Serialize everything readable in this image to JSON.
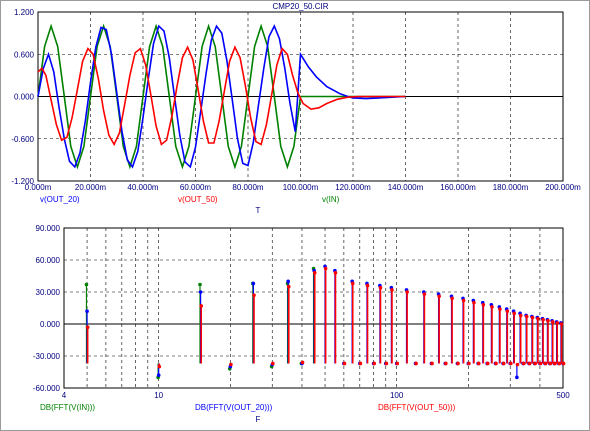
{
  "window_title": "CMP20_50.CIR",
  "chart_data": [
    {
      "type": "line",
      "title": "CMP20_50.CIR",
      "xlabel": "T",
      "ylabel": "",
      "xlim": [
        0,
        200
      ],
      "ylim": [
        -1.2,
        1.2
      ],
      "x_unit": "m",
      "x_ticks": [
        "0.000m",
        "20.000m",
        "40.000m",
        "60.000m",
        "80.000m",
        "100.000m",
        "120.000m",
        "140.000m",
        "160.000m",
        "180.000m",
        "200.000m"
      ],
      "y_ticks": [
        "1.200",
        "0.600",
        "0.000",
        "-0.600",
        "-1.200"
      ],
      "grid": true,
      "series": [
        {
          "name": "v(IN)",
          "color": "#008000",
          "x": [
            0,
            2.5,
            5,
            7.5,
            10,
            12.5,
            15,
            17.5,
            20,
            22.5,
            25,
            27.5,
            30,
            32.5,
            35,
            37.5,
            40,
            42.5,
            45,
            47.5,
            50,
            52.5,
            55,
            57.5,
            60,
            62.5,
            65,
            67.5,
            70,
            72.5,
            75,
            77.5,
            80,
            82.5,
            85,
            87.5,
            90,
            92.5,
            95,
            97.5,
            100,
            101,
            110,
            120,
            140
          ],
          "y": [
            0,
            0.71,
            1.0,
            0.71,
            0,
            -0.71,
            -1.0,
            -0.71,
            0,
            0.71,
            1.0,
            0.71,
            0,
            -0.71,
            -1.0,
            -0.71,
            0,
            0.71,
            1.0,
            0.71,
            0,
            -0.71,
            -1.0,
            -0.71,
            0,
            0.71,
            1.0,
            0.71,
            0,
            -0.71,
            -1.0,
            -0.71,
            0,
            0.71,
            1.0,
            0.71,
            0,
            -0.71,
            -1.0,
            -0.71,
            0,
            0,
            0,
            0,
            0
          ]
        },
        {
          "name": "v(OUT_20)",
          "color": "#0000ff",
          "x": [
            0,
            2,
            4,
            6,
            8,
            10,
            12,
            14,
            16,
            18,
            20,
            22,
            24,
            26,
            28,
            30,
            32,
            34,
            36,
            38,
            40,
            42,
            44,
            46,
            48,
            50,
            52,
            54,
            56,
            58,
            60,
            62,
            64,
            66,
            68,
            70,
            72,
            74,
            76,
            78,
            80,
            82,
            84,
            86,
            88,
            90,
            92,
            94,
            96,
            98,
            100,
            103,
            106,
            110,
            115,
            118,
            120,
            125,
            130,
            140
          ],
          "y": [
            0,
            0.4,
            0.6,
            0.35,
            -0.15,
            -0.6,
            -0.92,
            -1.0,
            -0.8,
            -0.35,
            0.2,
            0.7,
            0.98,
            0.95,
            0.6,
            0.05,
            -0.5,
            -0.9,
            -1.0,
            -0.78,
            -0.3,
            0.25,
            0.75,
            1.0,
            0.93,
            0.55,
            0.0,
            -0.55,
            -0.93,
            -1.0,
            -0.72,
            -0.2,
            0.32,
            0.8,
            1.0,
            0.9,
            0.5,
            -0.05,
            -0.6,
            -0.95,
            -0.98,
            -0.65,
            -0.12,
            0.4,
            0.85,
            1.0,
            0.82,
            0.4,
            -0.1,
            -0.5,
            0.6,
            0.42,
            0.28,
            0.14,
            0.04,
            0.0,
            -0.02,
            -0.03,
            -0.02,
            0.0
          ]
        },
        {
          "name": "v(OUT_50)",
          "color": "#ff0000",
          "x": [
            0,
            1.5,
            3,
            5,
            7,
            9,
            11,
            13,
            15,
            17,
            19,
            21,
            23,
            25,
            27,
            29,
            31,
            33,
            35,
            37,
            39,
            41,
            43,
            45,
            47,
            49,
            51,
            53,
            55,
            57,
            59,
            61,
            63,
            65,
            67,
            69,
            71,
            73,
            75,
            77,
            79,
            81,
            83,
            85,
            87,
            89,
            91,
            93,
            95,
            97,
            99,
            101,
            104,
            107,
            110,
            114,
            118,
            122,
            126,
            140
          ],
          "y": [
            0.35,
            0.4,
            0.3,
            -0.05,
            -0.4,
            -0.62,
            -0.58,
            -0.3,
            0.1,
            0.5,
            0.68,
            0.6,
            0.25,
            -0.2,
            -0.55,
            -0.68,
            -0.52,
            -0.12,
            0.3,
            0.62,
            0.68,
            0.45,
            0.02,
            -0.42,
            -0.68,
            -0.62,
            -0.28,
            0.15,
            0.55,
            0.7,
            0.52,
            0.1,
            -0.35,
            -0.66,
            -0.66,
            -0.35,
            0.08,
            0.5,
            0.7,
            0.55,
            0.15,
            -0.3,
            -0.64,
            -0.68,
            -0.4,
            0.02,
            0.45,
            0.68,
            0.6,
            0.3,
            0.05,
            -0.1,
            -0.18,
            -0.16,
            -0.1,
            -0.04,
            -0.01,
            0.0,
            0.0,
            0.0
          ]
        }
      ],
      "legend": [
        "v(OUT_20)",
        "v(OUT_50)",
        "v(IN)"
      ]
    },
    {
      "type": "scatter",
      "title": "",
      "xlabel": "F",
      "ylabel": "",
      "x_scale": "log",
      "xlim": [
        4,
        500
      ],
      "ylim": [
        -60,
        90
      ],
      "x_ticks": [
        "4",
        "10",
        "100",
        "500"
      ],
      "y_ticks": [
        "90.000",
        "60.000",
        "30.000",
        "0.000",
        "-30.000",
        "-60.000"
      ],
      "grid": true,
      "baseline": -37,
      "series": [
        {
          "name": "DB(FFT(V(IN)))",
          "color": "#008000",
          "x": [
            5,
            10,
            15,
            20,
            25,
            30,
            35,
            40,
            45
          ],
          "y": [
            37,
            -50,
            37,
            -42,
            38,
            -40,
            38,
            -37,
            52
          ]
        },
        {
          "name": "DB(FFT(V(OUT_20)))",
          "color": "#0000ff",
          "x": [
            5,
            10,
            15,
            20,
            25,
            30,
            35,
            40,
            45,
            50,
            55,
            60,
            65,
            70,
            75,
            80,
            85,
            90,
            95,
            100,
            110,
            120,
            130,
            140,
            150,
            160,
            170,
            180,
            190,
            200,
            210,
            220,
            230,
            240,
            250,
            260,
            270,
            280,
            290,
            300,
            310,
            320,
            330,
            340,
            350,
            360,
            370,
            380,
            390,
            400,
            410,
            420,
            430,
            440,
            450,
            460,
            470,
            480,
            490,
            500
          ],
          "y": [
            12,
            -48,
            30,
            -40,
            38,
            -38,
            40,
            -37,
            50,
            54,
            50,
            -37,
            40,
            -37,
            38,
            -37,
            36,
            -37,
            34,
            -37,
            32,
            -37,
            30,
            -37,
            28,
            -37,
            26,
            -37,
            24,
            -37,
            22,
            -37,
            20,
            -37,
            18,
            -37,
            16,
            -37,
            14,
            -37,
            12,
            -50,
            10,
            -37,
            8,
            -37,
            7,
            -37,
            6,
            -37,
            5,
            -37,
            4,
            -37,
            3,
            -37,
            2,
            -37,
            1,
            -37
          ]
        },
        {
          "name": "DB(FFT(V(OUT_50)))",
          "color": "#ff0000",
          "x": [
            5,
            10,
            15,
            20,
            25,
            30,
            35,
            40,
            45,
            50,
            55,
            60,
            65,
            70,
            75,
            80,
            85,
            90,
            95,
            100,
            110,
            120,
            130,
            140,
            150,
            160,
            170,
            180,
            190,
            200,
            210,
            220,
            230,
            240,
            250,
            260,
            270,
            280,
            290,
            300,
            310,
            320,
            330,
            340,
            350,
            360,
            370,
            380,
            390,
            400,
            410,
            420,
            430,
            440,
            450,
            460,
            470,
            480,
            490,
            500
          ],
          "y": [
            -3,
            -40,
            17,
            -38,
            27,
            -37,
            35,
            -36,
            48,
            52,
            48,
            -37,
            38,
            -37,
            36,
            -37,
            34,
            -37,
            32,
            -37,
            30,
            -37,
            28,
            -37,
            26,
            -37,
            24,
            -37,
            22,
            -37,
            20,
            -37,
            18,
            -37,
            16,
            -37,
            14,
            -37,
            12,
            -37,
            10,
            -38,
            8,
            -37,
            7,
            -37,
            6,
            -37,
            5,
            -37,
            4,
            -37,
            3,
            -37,
            2,
            -37,
            1,
            -37,
            0,
            -37
          ]
        }
      ],
      "legend": [
        "DB(FFT(V(IN)))",
        "DB(FFT(V(OUT_20)))",
        "DB(FFT(V(OUT_50)))"
      ]
    }
  ]
}
